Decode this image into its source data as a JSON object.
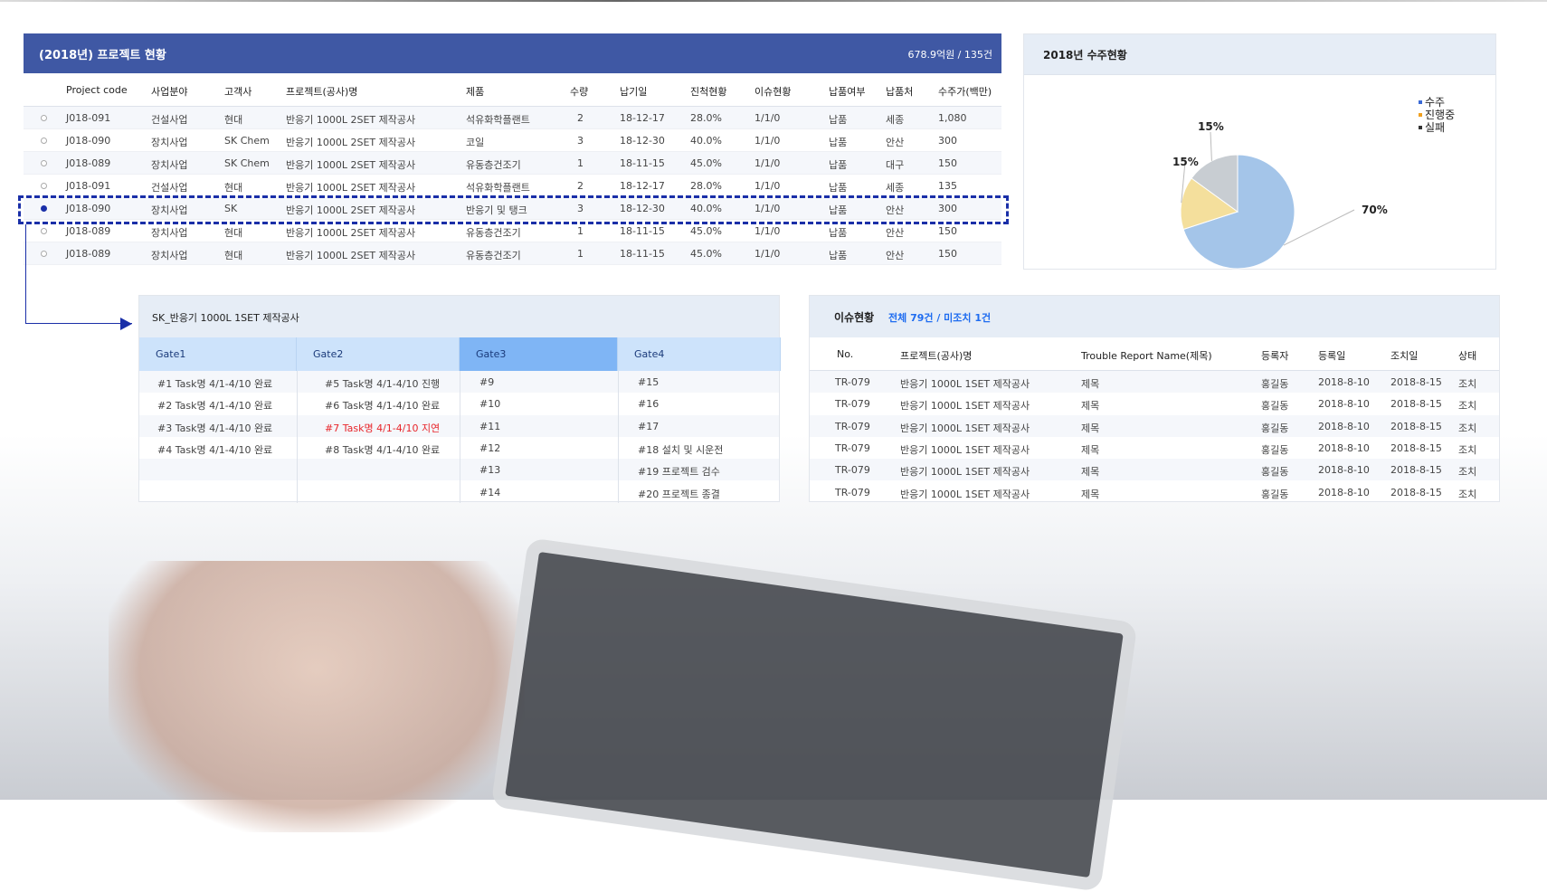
{
  "project_table": {
    "title": "(2018년) 프로젝트 현황",
    "summary": "678.9억원 / 135건",
    "columns": [
      "Project code",
      "사업분야",
      "고객사",
      "프로젝트(공사)명",
      "제품",
      "수량",
      "납기일",
      "진척현황",
      "이슈현황",
      "납품여부",
      "납품처",
      "수주가(백만)"
    ],
    "rows": [
      [
        "J018-091",
        "건설사업",
        "현대",
        "반응기 1000L 2SET 제작공사",
        "석유화학플랜트",
        "2",
        "18-12-17",
        "28.0%",
        "1/1/0",
        "납품",
        "세종",
        "1,080"
      ],
      [
        "J018-090",
        "장치사업",
        "SK Chem",
        "반응기 1000L 2SET 제작공사",
        "코일",
        "3",
        "18-12-30",
        "40.0%",
        "1/1/0",
        "납품",
        "안산",
        "300"
      ],
      [
        "J018-089",
        "장치사업",
        "SK Chem",
        "반응기 1000L 2SET 제작공사",
        "유동층건조기",
        "1",
        "18-11-15",
        "45.0%",
        "1/1/0",
        "납품",
        "대구",
        "150"
      ],
      [
        "J018-091",
        "건설사업",
        "현대",
        "반응기 1000L 2SET 제작공사",
        "석유화학플랜트",
        "2",
        "18-12-17",
        "28.0%",
        "1/1/0",
        "납품",
        "세종",
        "135"
      ],
      [
        "J018-090",
        "장치사업",
        "SK",
        "반응기 1000L 2SET 제작공사",
        "반응기 및 탱크",
        "3",
        "18-12-30",
        "40.0%",
        "1/1/0",
        "납품",
        "안산",
        "300"
      ],
      [
        "J018-089",
        "장치사업",
        "현대",
        "반응기 1000L 2SET 제작공사",
        "유동층건조기",
        "1",
        "18-11-15",
        "45.0%",
        "1/1/0",
        "납품",
        "안산",
        "150"
      ],
      [
        "J018-089",
        "장치사업",
        "현대",
        "반응기 1000L 2SET 제작공사",
        "유동층건조기",
        "1",
        "18-11-15",
        "45.0%",
        "1/1/0",
        "납품",
        "안산",
        "150"
      ]
    ],
    "selected_row": 4,
    "header_color": "#3f58a4",
    "highlight_color": "#1a2fa8"
  },
  "orders": {
    "title": "2018년 수주현황",
    "chart_data": {
      "type": "pie",
      "categories": [
        "수주",
        "진행중",
        "실패"
      ],
      "values": [
        70,
        15,
        15
      ],
      "labels": [
        "70%",
        "15%",
        "15%"
      ],
      "colors": [
        "#a4c5e9",
        "#f4df9c",
        "#c8cdd2"
      ],
      "legend": "top-right"
    }
  },
  "gates": {
    "title": "SK_반응기 1000L 1SET 제작공사",
    "columns": [
      "Gate1",
      "Gate2",
      "Gate3",
      "Gate4"
    ],
    "active_column": 2,
    "cells": [
      [
        "#1 Task명 4/1-4/10 완료",
        "#2 Task명 4/1-4/10 완료",
        "#3 Task명 4/1-4/10 완료",
        "#4 Task명 4/1-4/10 완료",
        "",
        ""
      ],
      [
        "#5 Task명 4/1-4/10 진행",
        "#6 Task명 4/1-4/10 완료",
        "#7 Task명 4/1-4/10 지연",
        "#8 Task명 4/1-4/10 완료",
        "",
        ""
      ],
      [
        "#9",
        "#10",
        "#11",
        "#12",
        "#13",
        "#14"
      ],
      [
        "#15",
        "#16",
        "#17",
        "#18  설치 및 시운전",
        "#19  프로젝트 검수",
        "#20  프로젝트 종결"
      ]
    ],
    "delayed_color": "#e8262b"
  },
  "issues": {
    "title": "이슈현황",
    "summary": "전체 79건 /  미조치 1건",
    "columns": [
      "No.",
      "프로젝트(공사)명",
      "Trouble Report Name(제목)",
      "등록자",
      "등록일",
      "조치일",
      "상태"
    ],
    "rows": [
      [
        "TR-079",
        "반응기 1000L 1SET 제작공사",
        "제목",
        "홍길동",
        "2018-8-10",
        "2018-8-15",
        "조치"
      ],
      [
        "TR-079",
        "반응기 1000L 1SET 제작공사",
        "제목",
        "홍길동",
        "2018-8-10",
        "2018-8-15",
        "조치"
      ],
      [
        "TR-079",
        "반응기 1000L 1SET 제작공사",
        "제목",
        "홍길동",
        "2018-8-10",
        "2018-8-15",
        "조치"
      ],
      [
        "TR-079",
        "반응기 1000L 1SET 제작공사",
        "제목",
        "홍길동",
        "2018-8-10",
        "2018-8-15",
        "조치"
      ],
      [
        "TR-079",
        "반응기 1000L 1SET 제작공사",
        "제목",
        "홍길동",
        "2018-8-10",
        "2018-8-15",
        "조치"
      ],
      [
        "TR-079",
        "반응기 1000L 1SET 제작공사",
        "제목",
        "홍길동",
        "2018-8-10",
        "2018-8-15",
        "조치"
      ]
    ]
  }
}
